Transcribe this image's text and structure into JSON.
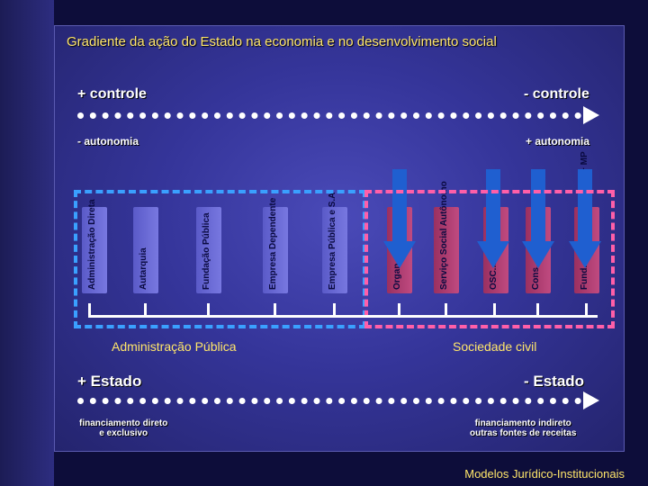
{
  "title": "Gradiente da ação do Estado na economia e no desenvolvimento social",
  "top_left_control": "+ controle",
  "top_right_control": "- controle",
  "left_autonomy": "- autonomia",
  "right_autonomy": "+ autonomia",
  "columns": [
    {
      "label": "Administração Direta"
    },
    {
      "label": "Autarquia"
    },
    {
      "label": "Fundação Pública"
    },
    {
      "label": "Empresa Dependente"
    },
    {
      "label": "Empresa Pública e S.A"
    },
    {
      "label": "Organ. ADM"
    },
    {
      "label": "Serviço Social Autônomo"
    },
    {
      "label": "OSC... projeto p/projetos"
    },
    {
      "label": "Cons... de regulamentação"
    },
    {
      "label": "Fund... Problemáticas TCU + MP"
    }
  ],
  "group_left": "Administração Pública",
  "group_right": "Sociedade civil",
  "bottom_left_state": "+ Estado",
  "bottom_right_state": "- Estado",
  "financing_left": "financiamento direto\ne exclusivo",
  "financing_right": "financiamento indireto\noutras fontes de receitas",
  "footer": "Modelos Jurídico-Institucionais",
  "colors": {
    "accent": "#ffe66a",
    "blue": "#3aa0ff",
    "pink": "#ff5fa8"
  }
}
